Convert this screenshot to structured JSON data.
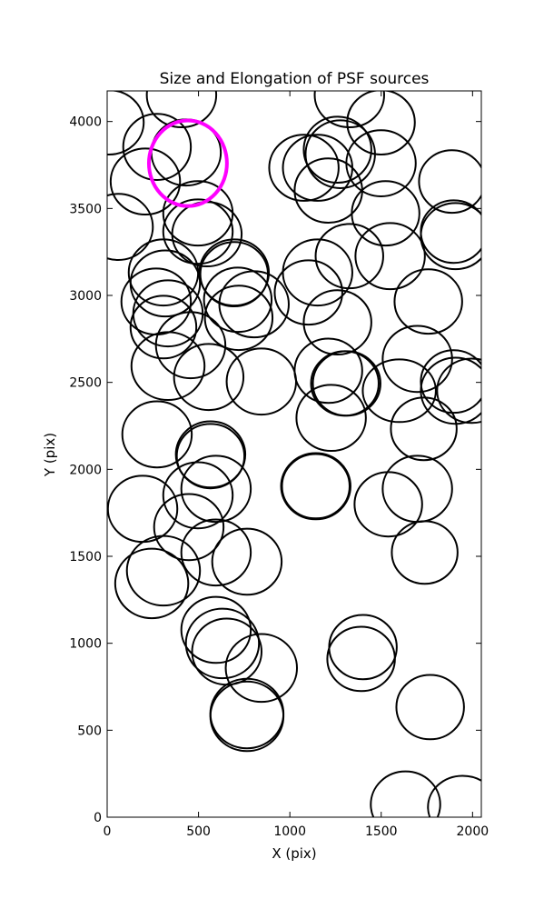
{
  "chart_data": {
    "type": "ellipse",
    "title": "Size and Elongation of PSF sources",
    "xlabel": "X (pix)",
    "ylabel": "Y (pix)",
    "xlim": [
      0,
      2048
    ],
    "ylim": [
      0,
      4176
    ],
    "xticks": [
      0,
      500,
      1000,
      1500,
      2000
    ],
    "yticks": [
      0,
      500,
      1000,
      1500,
      2000,
      2500,
      3000,
      3500,
      4000
    ],
    "series": [
      {
        "color": "#000000",
        "x": [
          10,
          407,
          273,
          432,
          209,
          60,
          497,
          497,
          546,
          1326,
          1499,
          1077,
          1152,
          1261,
          1276,
          1211,
          1499,
          1524,
          1887,
          1897,
          1907,
          1549,
          1326,
          1152,
          1102,
          1758,
          1261,
          1698,
          1599,
          1897,
          1907,
          1996,
          1211,
          1301,
          1311,
          1226,
          1733,
          1698,
          1539,
          1738,
          1142,
          1142,
          1400,
          1390,
          1768,
          1633,
          1946,
          308,
          318,
          268,
          333,
          308,
          457,
          333,
          556,
          695,
          695,
          715,
          804,
          720,
          844,
          566,
          566,
          273,
          596,
          497,
          194,
          447,
          596,
          765,
          308,
          244,
          596,
          631,
          655,
          844,
          765,
          765
        ],
        "y": [
          3995,
          4152,
          3854,
          3822,
          3655,
          3394,
          3472,
          3367,
          3352,
          4152,
          3995,
          3734,
          3734,
          3838,
          3812,
          3603,
          3760,
          3472,
          3655,
          3367,
          3341,
          3226,
          3226,
          3132,
          3017,
          2965,
          2845,
          2635,
          2452,
          2505,
          2452,
          2452,
          2567,
          2494,
          2494,
          2296,
          2233,
          1888,
          1799,
          1522,
          1903,
          1903,
          978,
          910,
          633,
          73,
          58,
          3132,
          3069,
          2965,
          2897,
          2818,
          2714,
          2594,
          2531,
          3122,
          3132,
          2975,
          2949,
          2871,
          2505,
          2086,
          2076,
          2201,
          1888,
          1851,
          1773,
          1668,
          1522,
          1469,
          1417,
          1344,
          1077,
          999,
          952,
          858,
          596,
          580
        ],
        "width": [
          380,
          380,
          370,
          380,
          380,
          380,
          380,
          380,
          380,
          380,
          370,
          380,
          380,
          370,
          380,
          370,
          380,
          370,
          360,
          360,
          380,
          380,
          370,
          380,
          370,
          370,
          370,
          380,
          400,
          360,
          380,
          380,
          370,
          370,
          370,
          380,
          360,
          380,
          370,
          360,
          380,
          370,
          370,
          370,
          370,
          380,
          380,
          380,
          380,
          380,
          380,
          360,
          380,
          400,
          380,
          370,
          380,
          370,
          380,
          370,
          380,
          380,
          370,
          380,
          380,
          380,
          380,
          380,
          380,
          380,
          400,
          400,
          380,
          400,
          380,
          390,
          400,
          400
        ],
        "height": [
          370,
          370,
          380,
          380,
          380,
          380,
          370,
          370,
          370,
          370,
          370,
          380,
          380,
          380,
          390,
          370,
          380,
          370,
          360,
          360,
          380,
          380,
          370,
          380,
          370,
          370,
          370,
          380,
          360,
          360,
          380,
          370,
          370,
          370,
          370,
          380,
          360,
          380,
          370,
          360,
          380,
          370,
          370,
          370,
          370,
          380,
          360,
          380,
          380,
          380,
          380,
          360,
          380,
          390,
          380,
          370,
          380,
          370,
          380,
          370,
          380,
          380,
          370,
          380,
          380,
          380,
          380,
          380,
          380,
          380,
          400,
          400,
          380,
          400,
          380,
          390,
          400,
          400
        ]
      },
      {
        "color": "#ff00ff",
        "x": [
          442
        ],
        "y": [
          3760
        ],
        "width": [
          427
        ],
        "height": [
          492
        ]
      }
    ]
  }
}
